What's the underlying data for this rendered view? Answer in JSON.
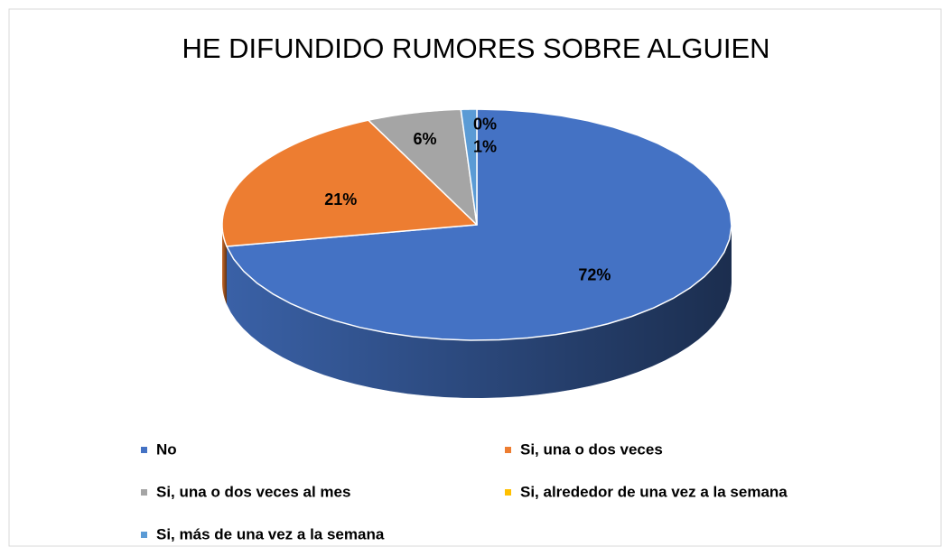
{
  "chart_data": {
    "type": "pie",
    "title": "HE DIFUNDIDO RUMORES SOBRE ALGUIEN",
    "categories": [
      "No",
      "Si, una o dos veces",
      "Si, una o dos veces al mes",
      "Si, alrededor de una vez a la semana",
      "Si, más de una vez a la semana"
    ],
    "values": [
      72,
      21,
      6,
      0,
      1
    ],
    "value_labels": [
      "72%",
      "21%",
      "6%",
      "0%",
      "1%"
    ],
    "colors": [
      "#4472c4",
      "#ed7d31",
      "#a5a5a5",
      "#ffc000",
      "#5b9bd5"
    ],
    "legend": "bottom"
  }
}
